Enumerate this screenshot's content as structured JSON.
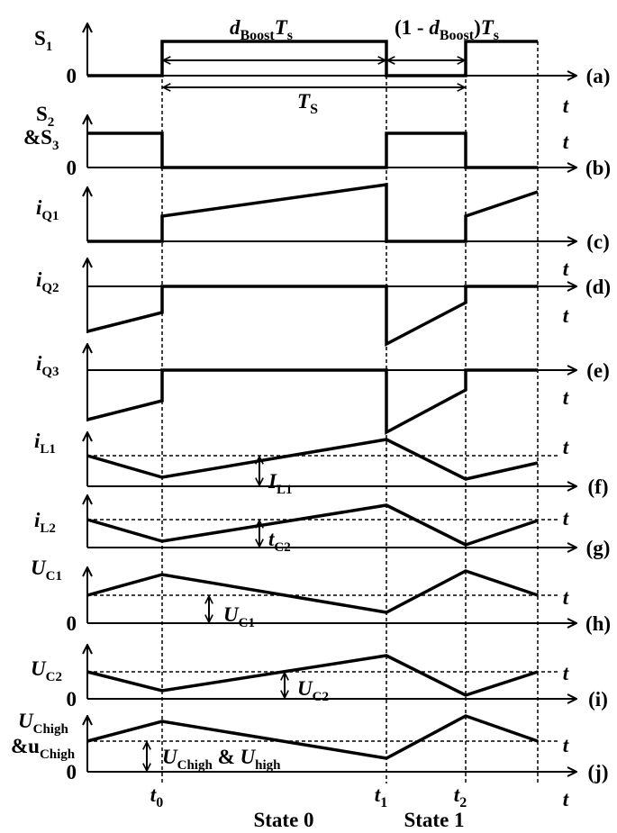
{
  "panels": [
    {
      "id": "(a)",
      "t": "t",
      "label": [
        "S",
        "1"
      ],
      "zero": "0"
    },
    {
      "id": "(b)",
      "t": "t",
      "label": [
        "S",
        "2"
      ],
      "label2": [
        "&S",
        "3"
      ],
      "zero": "0"
    },
    {
      "id": "(c)",
      "t": "t",
      "label": [
        "i",
        "Q1"
      ]
    },
    {
      "id": "(d)",
      "t": "t",
      "label": [
        "i",
        "Q2"
      ]
    },
    {
      "id": "(e)",
      "t": "t",
      "label": [
        "i",
        "Q3"
      ]
    },
    {
      "id": "(f)",
      "t": "t",
      "label": [
        "i",
        "L1"
      ]
    },
    {
      "id": "(g)",
      "t": "t",
      "label": [
        "i",
        "L2"
      ]
    },
    {
      "id": "(h)",
      "t": "t",
      "label": [
        "U",
        "C1"
      ],
      "zero": "0"
    },
    {
      "id": "(i)",
      "t": "t",
      "label": [
        "U",
        "C2"
      ],
      "zero": "0"
    },
    {
      "id": "(j)",
      "t": "t",
      "label": [
        "U",
        "Chigh"
      ],
      "label2": [
        "&u",
        "Chigh"
      ],
      "zero": "0"
    }
  ],
  "annotations": {
    "duty": [
      "d",
      "Boost",
      "T",
      "s"
    ],
    "off": [
      "(1 - ",
      "d",
      "Boost",
      ")",
      "T",
      "s"
    ],
    "period": [
      "T",
      "S"
    ],
    "delta_iL1": [
      "I",
      "L1"
    ],
    "delta_iL2": [
      "t",
      "C2"
    ],
    "delta_uC1": [
      "U",
      "C1"
    ],
    "delta_uC2": [
      "U",
      "C2"
    ],
    "delta_uhigh": [
      "U",
      "Chigh",
      " & ",
      "U",
      "high"
    ]
  },
  "bottom_axis": "t",
  "times": [
    [
      "t",
      "0"
    ],
    [
      "t",
      "1"
    ],
    [
      "t",
      "2"
    ]
  ],
  "states": [
    "State 0",
    "State 1"
  ]
}
